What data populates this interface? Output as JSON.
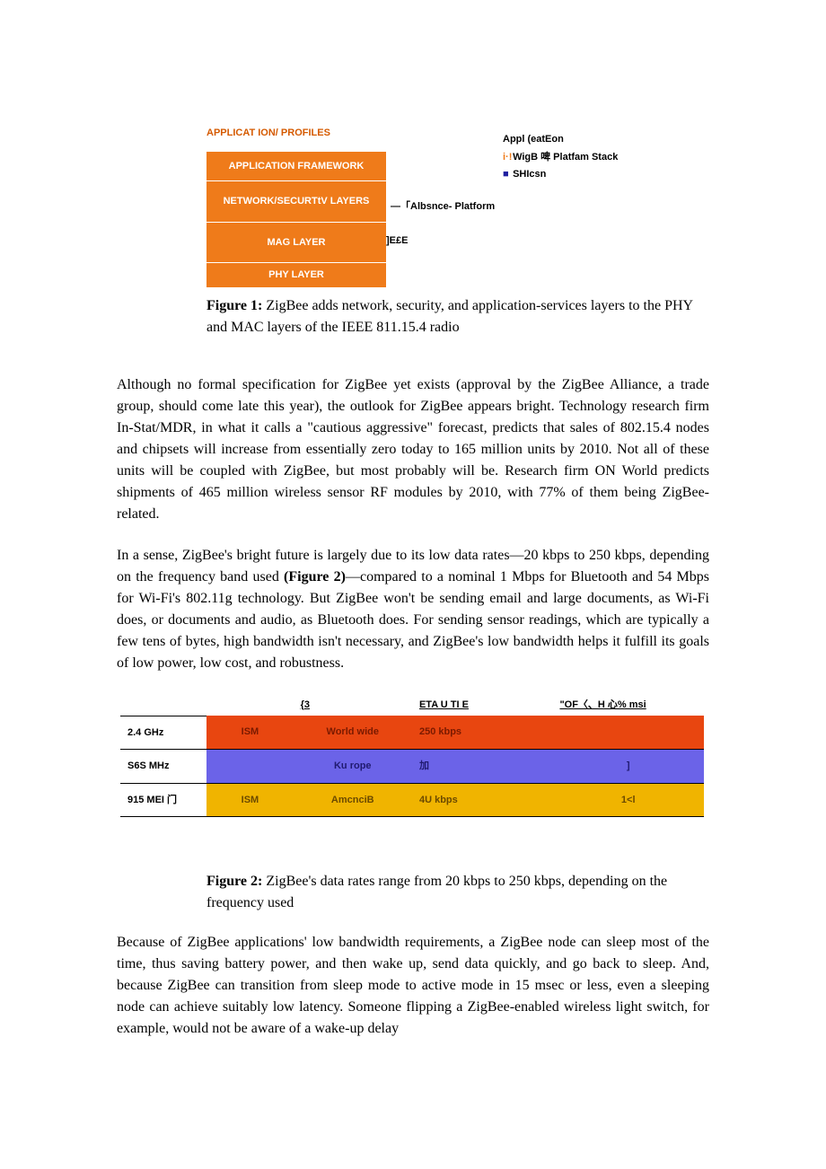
{
  "figure1": {
    "stack_title": "APPLICAT ION/ PROFILES",
    "layers": [
      "APPLICATION FRAMEWORK",
      "NETWORK/SECURTtV LAYERS",
      "MAG LAYER",
      "PHY LAYER"
    ],
    "annot_absnce": "—「Albsnce- Platform",
    "annot_jee": "]E£E",
    "legend": {
      "line1": "Appl (eatEon",
      "line2": "WigB 啤 Platfam Stack",
      "line2_marker": "i·!",
      "line3": "SHIcsn",
      "line3_marker": "■"
    },
    "caption_bold": "Figure 1:",
    "caption": " ZigBee adds network, security, and application-services layers to the PHY and MAC layers of the IEEE 811.15.4 radio"
  },
  "paragraph1": "Although no formal specification for ZigBee yet exists (approval by the ZigBee Alliance, a trade group, should come late this year), the outlook for ZigBee appears bright. Technology research firm In-Stat/MDR, in what it calls a \"cautious aggressive\" forecast, predicts that sales of 802.15.4 nodes and chipsets will increase from essentially zero today to 165 million units by 2010. Not all of these units will be coupled with ZigBee, but most probably will be. Research firm ON World predicts shipments of 465 million wireless sensor RF modules by 2010, with 77% of them being ZigBee-related.",
  "paragraph2_pre": "In a sense, ZigBee's bright future is largely due to its low data rates—20 kbps to 250 kbps, depending on the frequency band used ",
  "paragraph2_bold": "(Figure 2)",
  "paragraph2_post": "—compared to a nominal 1 Mbps for Bluetooth and 54 Mbps for Wi-Fi's 802.11g technology. But ZigBee won't be sending email and large documents, as Wi-Fi does, or documents and audio, as Bluetooth does. For sending sensor readings, which are typically a few tens of bytes, high bandwidth isn't necessary, and ZigBee's low bandwidth helps it fulfill its goals of low power, low cost, and robustness.",
  "figure2": {
    "headers": {
      "h1": "",
      "h2": "",
      "h3": "{3",
      "h4": "ETA U TI E",
      "h5": "\"OF〈、H 心% msi"
    },
    "rows": [
      {
        "band": "2.4 GHz",
        "c2": "ISM",
        "c3": "World wide",
        "c4": "250 kbps",
        "c5": "",
        "row_class": "row-orange"
      },
      {
        "band": "S6S MHz",
        "c2": "",
        "c3": "Ku rope",
        "c4": "加",
        "c5": "]",
        "row_class": "row-purple"
      },
      {
        "band": "915 MEI 门",
        "c2": "ISM",
        "c3": "AmcnciB",
        "c4": "4U kbps",
        "c5": "1<l",
        "row_class": "row-yellow"
      }
    ],
    "caption_bold": "Figure 2:",
    "caption": " ZigBee's data rates range from 20 kbps to 250 kbps, depending on the frequency used"
  },
  "paragraph3": "Because of ZigBee applications' low bandwidth requirements, a ZigBee node can sleep most of the time, thus saving battery power, and then wake up, send data quickly, and go back to sleep. And, because ZigBee can transition from sleep mode to active mode in 15 msec or less, even a sleeping node can achieve suitably low latency. Someone flipping a ZigBee-enabled wireless light switch, for example, would not be aware of a wake-up delay"
}
